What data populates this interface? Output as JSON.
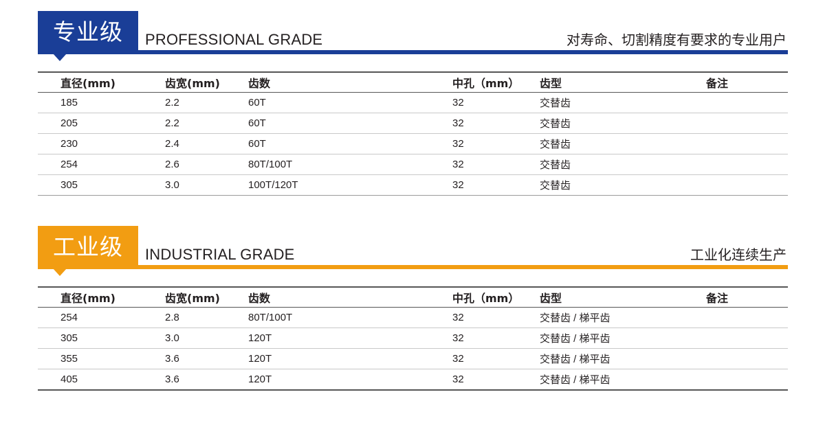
{
  "professional": {
    "tab_label": "专业级",
    "english_title": "PROFESSIONAL GRADE",
    "audience": "对寿命、切割精度有要求的专业用户",
    "accent_color": "#1a3e97",
    "headers": [
      "直径(mm)",
      "齿宽(mm)",
      "齿数",
      "中孔（mm）",
      "齿型",
      "备注"
    ],
    "rows": [
      [
        "185",
        "2.2",
        "60T",
        "32",
        "交替齿",
        ""
      ],
      [
        "205",
        "2.2",
        "60T",
        "32",
        "交替齿",
        ""
      ],
      [
        "230",
        "2.4",
        "60T",
        "32",
        "交替齿",
        ""
      ],
      [
        "254",
        "2.6",
        "80T/100T",
        "32",
        "交替齿",
        ""
      ],
      [
        "305",
        "3.0",
        "100T/120T",
        "32",
        "交替齿",
        ""
      ]
    ]
  },
  "industrial": {
    "tab_label": "工业级",
    "english_title": "INDUSTRIAL GRADE",
    "audience": "工业化连续生产",
    "accent_color": "#f29d12",
    "headers": [
      "直径(mm)",
      "齿宽(mm)",
      "齿数",
      "中孔（mm）",
      "齿型",
      "备注"
    ],
    "rows": [
      [
        "254",
        "2.8",
        "80T/100T",
        "32",
        "交替齿 / 梯平齿",
        ""
      ],
      [
        "305",
        "3.0",
        "120T",
        "32",
        "交替齿 / 梯平齿",
        ""
      ],
      [
        "355",
        "3.6",
        "120T",
        "32",
        "交替齿 / 梯平齿",
        ""
      ],
      [
        "405",
        "3.6",
        "120T",
        "32",
        "交替齿 / 梯平齿",
        ""
      ]
    ]
  }
}
